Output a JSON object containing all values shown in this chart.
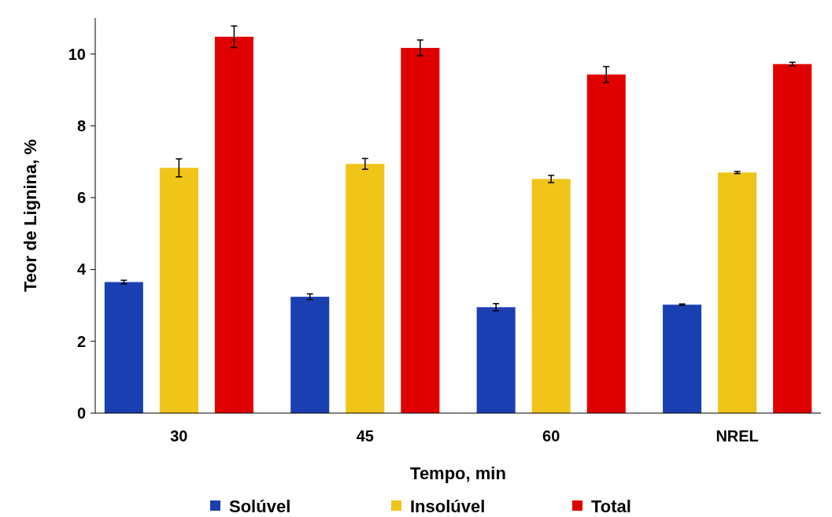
{
  "chart_data": {
    "type": "bar",
    "xlabel": "Tempo, min",
    "ylabel": "Teor de Lignina, %",
    "categories": [
      "30",
      "45",
      "60",
      "NREL"
    ],
    "series": [
      {
        "name": "Solúvel",
        "color": "#1a3fb0",
        "values": [
          3.65,
          3.24,
          2.95,
          3.02
        ],
        "errors": [
          0.05,
          0.08,
          0.1,
          0.02
        ]
      },
      {
        "name": "Insolúvel",
        "color": "#f0c419",
        "values": [
          6.83,
          6.94,
          6.52,
          6.7
        ],
        "errors": [
          0.25,
          0.15,
          0.1,
          0.03
        ]
      },
      {
        "name": "Total",
        "color": "#e00000",
        "values": [
          10.48,
          10.17,
          9.43,
          9.72
        ],
        "errors": [
          0.3,
          0.22,
          0.22,
          0.05
        ]
      }
    ],
    "ylim": [
      0,
      11
    ],
    "yticks": [
      0,
      2,
      4,
      6,
      8,
      10
    ],
    "grid": false,
    "legend": "bottom"
  }
}
